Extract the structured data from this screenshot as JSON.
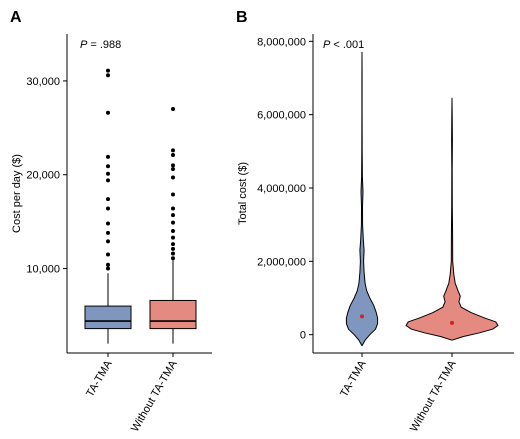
{
  "panels": [
    {
      "letter": "A"
    },
    {
      "letter": "B"
    }
  ],
  "colors": {
    "ta_tma": "#7f97bf",
    "without_ta_tma": "#e58a80",
    "mean_marker": "#d81e1e",
    "ink": "#000000"
  },
  "chart_data": [
    {
      "type": "box",
      "panel": "A",
      "ylabel": "Cost per day ($)",
      "annotation": {
        "italic": "P",
        "text": " = .988"
      },
      "ylim": [
        1000,
        35000
      ],
      "yticks": [
        10000,
        20000,
        30000
      ],
      "ytick_labels": [
        "10,000",
        "20,000",
        "30,000"
      ],
      "categories": [
        "TA-TMA",
        "Without TA-TMA"
      ],
      "grid": false,
      "legend": "none",
      "series": [
        {
          "category": "TA-TMA",
          "color": "#7f97bf",
          "whisker_low": 2000,
          "q1": 3600,
          "median": 4400,
          "q3": 6000,
          "whisker_high": 9500,
          "outliers": [
            10000,
            10400,
            11500,
            12900,
            13800,
            14800,
            16400,
            17400,
            19400,
            20100,
            20900,
            21900,
            26600,
            30600,
            31100
          ]
        },
        {
          "category": "Without TA-TMA",
          "color": "#e58a80",
          "whisker_low": 2000,
          "q1": 3600,
          "median": 4400,
          "q3": 6600,
          "whisker_high": 10900,
          "outliers": [
            11100,
            11600,
            12100,
            12600,
            13300,
            14000,
            14900,
            15700,
            16400,
            17900,
            19700,
            20600,
            21000,
            22100,
            22600,
            27000
          ]
        }
      ]
    },
    {
      "type": "violin",
      "panel": "B",
      "ylabel": "Total cost ($)",
      "annotation": {
        "italic": "P",
        "text": " < .001"
      },
      "ylim": [
        -500000,
        8200000
      ],
      "yticks": [
        0,
        2000000,
        4000000,
        6000000,
        8000000
      ],
      "ytick_labels": [
        "0",
        "2,000,000",
        "4,000,000",
        "6,000,000",
        "8,000,000"
      ],
      "categories": [
        "TA-TMA",
        "Without TA-TMA"
      ],
      "grid": false,
      "legend": "none",
      "series": [
        {
          "category": "TA-TMA",
          "color": "#7f97bf",
          "mean": 500000,
          "density": [
            [
              -300000,
              0.0
            ],
            [
              -150000,
              0.12
            ],
            [
              0,
              0.3
            ],
            [
              150000,
              0.52
            ],
            [
              300000,
              0.6
            ],
            [
              450000,
              0.6
            ],
            [
              600000,
              0.55
            ],
            [
              800000,
              0.45
            ],
            [
              1000000,
              0.3
            ],
            [
              1200000,
              0.18
            ],
            [
              1400000,
              0.12
            ],
            [
              1700000,
              0.08
            ],
            [
              2000000,
              0.06
            ],
            [
              2300000,
              0.08
            ],
            [
              2600000,
              0.05
            ],
            [
              3000000,
              0.025
            ],
            [
              3500000,
              0.02
            ],
            [
              3900000,
              0.04
            ],
            [
              4300000,
              0.015
            ],
            [
              5000000,
              0.008
            ],
            [
              6000000,
              0.005
            ],
            [
              7000000,
              0.004
            ],
            [
              7700000,
              0.0
            ]
          ]
        },
        {
          "category": "Without TA-TMA",
          "color": "#e58a80",
          "mean": 320000,
          "density": [
            [
              -150000,
              0.0
            ],
            [
              -50000,
              0.25
            ],
            [
              50000,
              0.6
            ],
            [
              150000,
              0.88
            ],
            [
              250000,
              1.0
            ],
            [
              350000,
              0.95
            ],
            [
              450000,
              0.72
            ],
            [
              600000,
              0.42
            ],
            [
              750000,
              0.2
            ],
            [
              900000,
              0.15
            ],
            [
              1050000,
              0.18
            ],
            [
              1200000,
              0.13
            ],
            [
              1400000,
              0.07
            ],
            [
              1650000,
              0.04
            ],
            [
              2000000,
              0.015
            ],
            [
              2700000,
              0.012
            ],
            [
              3500000,
              0.006
            ],
            [
              4500000,
              0.005
            ],
            [
              5300000,
              0.008
            ],
            [
              6000000,
              0.004
            ],
            [
              6450000,
              0.0
            ]
          ]
        }
      ]
    }
  ]
}
